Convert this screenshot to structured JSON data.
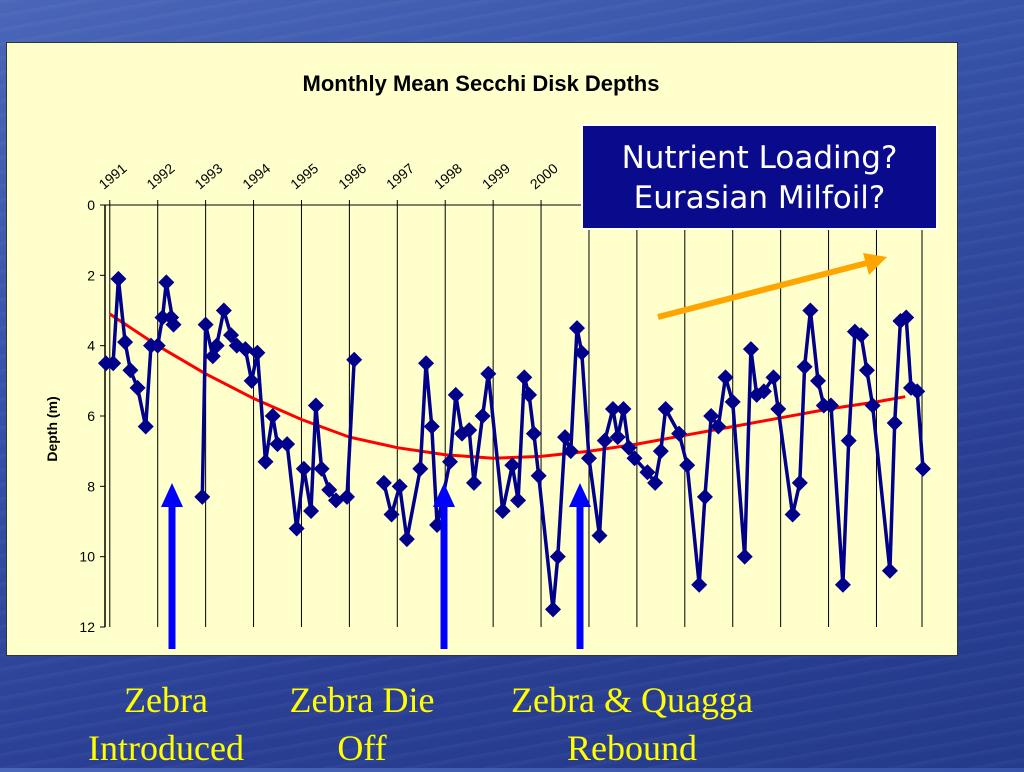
{
  "chart_data": {
    "type": "line",
    "title": "Monthly Mean Secchi Disk Depths",
    "ylabel": "Depth (m)",
    "xlabel": "",
    "ylim": [
      0,
      12
    ],
    "y_inverted": true,
    "yticks": [
      "0",
      "2",
      "4",
      "6",
      "8",
      "10",
      "12"
    ],
    "year_labels": [
      "1991",
      "1992",
      "1993",
      "1994",
      "1995",
      "1996",
      "1997",
      "1998",
      "1999",
      "2000"
    ],
    "x_range": [
      1990.9,
      2007.7
    ],
    "grid": "vertical gridlines at each year",
    "series": [
      {
        "color": "#00008b",
        "marker": "diamond",
        "points": [
          [
            1990.92,
            4.5
          ],
          [
            1991.07,
            4.5
          ],
          [
            1991.18,
            2.1
          ],
          [
            1991.32,
            3.9
          ],
          [
            1991.43,
            4.7
          ],
          [
            1991.58,
            5.2
          ],
          [
            1991.75,
            6.3
          ],
          [
            1991.86,
            4.0
          ],
          [
            1992.0,
            4.0
          ],
          [
            1992.1,
            3.2
          ],
          [
            1992.18,
            2.2
          ],
          [
            1992.33,
            3.4
          ],
          [
            1992.28,
            3.2
          ],
          [
            1992.93,
            8.3
          ],
          [
            1993.0,
            3.4
          ],
          [
            1993.15,
            4.3
          ],
          [
            1993.23,
            4.0
          ],
          [
            1993.38,
            3.0
          ],
          [
            1993.53,
            3.7
          ],
          [
            1993.65,
            4.0
          ],
          [
            1993.83,
            4.1
          ],
          [
            1993.96,
            5.0
          ],
          [
            1994.08,
            4.2
          ],
          [
            1994.25,
            7.3
          ],
          [
            1994.4,
            6.0
          ],
          [
            1994.5,
            6.8
          ],
          [
            1994.7,
            6.8
          ],
          [
            1994.9,
            9.2
          ],
          [
            1995.05,
            7.5
          ],
          [
            1995.2,
            8.7
          ],
          [
            1995.3,
            5.7
          ],
          [
            1995.42,
            7.5
          ],
          [
            1995.58,
            8.1
          ],
          [
            1995.72,
            8.4
          ],
          [
            1995.95,
            8.3
          ],
          [
            1996.1,
            4.4
          ],
          [
            1996.72,
            7.9
          ],
          [
            1996.88,
            8.8
          ],
          [
            1997.05,
            8.0
          ],
          [
            1997.2,
            9.5
          ],
          [
            1997.48,
            7.5
          ],
          [
            1997.6,
            4.5
          ],
          [
            1997.72,
            6.3
          ],
          [
            1997.83,
            9.1
          ],
          [
            1998.1,
            7.3
          ],
          [
            1998.22,
            5.4
          ],
          [
            1998.35,
            6.5
          ],
          [
            1998.5,
            6.4
          ],
          [
            1998.6,
            7.9
          ],
          [
            1998.78,
            6.0
          ],
          [
            1998.9,
            4.8
          ],
          [
            1999.2,
            8.7
          ],
          [
            1999.4,
            7.4
          ],
          [
            1999.52,
            8.4
          ],
          [
            1999.65,
            4.9
          ],
          [
            1999.75,
            5.4
          ],
          [
            1999.85,
            6.5
          ],
          [
            1999.95,
            7.7
          ],
          [
            2000.25,
            11.5
          ],
          [
            2000.35,
            10.0
          ],
          [
            2000.5,
            6.6
          ],
          [
            2000.62,
            7.0
          ],
          [
            2000.75,
            3.5
          ],
          [
            2000.85,
            4.2
          ],
          [
            2001.0,
            7.2
          ],
          [
            2001.22,
            9.4
          ],
          [
            2001.33,
            6.7
          ],
          [
            2001.5,
            5.8
          ],
          [
            2001.6,
            6.6
          ],
          [
            2001.72,
            5.8
          ],
          [
            2001.83,
            6.9
          ],
          [
            2001.95,
            7.2
          ],
          [
            2002.22,
            7.6
          ],
          [
            2002.38,
            7.9
          ],
          [
            2002.5,
            7.0
          ],
          [
            2002.6,
            5.8
          ],
          [
            2002.88,
            6.5
          ],
          [
            2003.05,
            7.4
          ],
          [
            2003.3,
            10.8
          ],
          [
            2003.42,
            8.3
          ],
          [
            2003.55,
            6.0
          ],
          [
            2003.7,
            6.3
          ],
          [
            2003.85,
            4.9
          ],
          [
            2004.0,
            5.6
          ],
          [
            2004.25,
            10.0
          ],
          [
            2004.38,
            4.1
          ],
          [
            2004.5,
            5.4
          ],
          [
            2004.65,
            5.3
          ],
          [
            2004.85,
            4.9
          ],
          [
            2004.95,
            5.8
          ],
          [
            2005.25,
            8.8
          ],
          [
            2005.4,
            7.9
          ],
          [
            2005.5,
            4.6
          ],
          [
            2005.62,
            3.0
          ],
          [
            2005.78,
            5.0
          ],
          [
            2005.9,
            5.7
          ],
          [
            2006.05,
            5.7
          ],
          [
            2006.3,
            10.8
          ],
          [
            2006.42,
            6.7
          ],
          [
            2006.55,
            3.6
          ],
          [
            2006.68,
            3.7
          ],
          [
            2006.8,
            4.7
          ],
          [
            2006.92,
            5.7
          ],
          [
            2007.28,
            10.4
          ],
          [
            2007.38,
            6.2
          ],
          [
            2007.5,
            3.3
          ],
          [
            2007.62,
            3.2
          ],
          [
            2007.72,
            5.2
          ],
          [
            2007.85,
            5.3
          ],
          [
            2007.97,
            7.5
          ]
        ]
      },
      {
        "color": "#ff0000",
        "role": "trend",
        "points": [
          [
            1991.0,
            3.1
          ],
          [
            1992.0,
            4.0
          ],
          [
            1993.0,
            4.8
          ],
          [
            1994.0,
            5.5
          ],
          [
            1995.0,
            6.1
          ],
          [
            1996.0,
            6.6
          ],
          [
            1997.0,
            6.9
          ],
          [
            1998.0,
            7.1
          ],
          [
            1999.0,
            7.2
          ],
          [
            2000.0,
            7.15
          ],
          [
            2001.0,
            7.0
          ],
          [
            2002.0,
            6.8
          ],
          [
            2003.0,
            6.55
          ],
          [
            2004.0,
            6.3
          ],
          [
            2005.0,
            6.05
          ],
          [
            2006.0,
            5.8
          ],
          [
            2007.0,
            5.6
          ],
          [
            2007.6,
            5.45
          ]
        ]
      }
    ],
    "annotations": [
      {
        "label": "Zebra Introduced",
        "arrow_color": "#0000ff",
        "year": 1992.2,
        "style": "vertical arrow"
      },
      {
        "label": "Zebra Die Off",
        "arrow_color": "#0000ff",
        "year": 1997.85,
        "style": "vertical arrow"
      },
      {
        "label": "Zebra & Quagga Rebound",
        "arrow_color": "#0000ff",
        "year": 2000.6,
        "style": "vertical arrow"
      },
      {
        "label": "Nutrient Loading? Eurasian Milfoil?",
        "arrow_color": "#ffa500",
        "style": "diagonal arrow"
      }
    ]
  },
  "callout": {
    "line1": "Nutrient Loading?",
    "line2": "Eurasian Milfoil?"
  },
  "captions": [
    {
      "line1": "Zebra",
      "line2": "Introduced"
    },
    {
      "line1": "Zebra Die",
      "line2": "Off"
    },
    {
      "line1": "Zebra & Quagga",
      "line2": "Rebound"
    }
  ]
}
